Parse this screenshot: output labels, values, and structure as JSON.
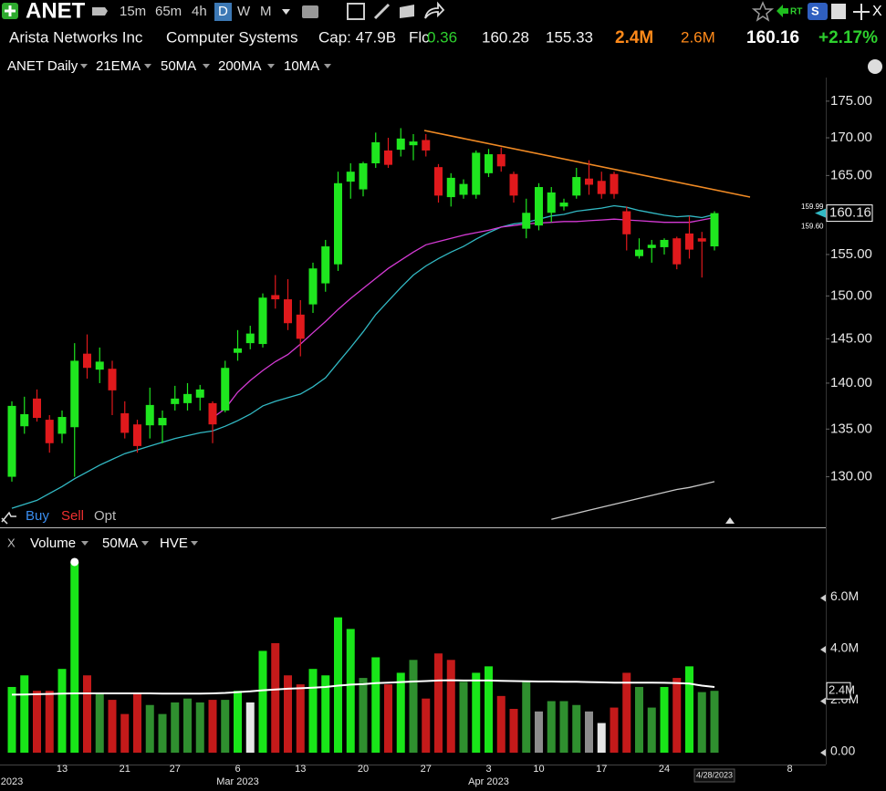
{
  "header": {
    "symbol": "ANET",
    "intervals": [
      "15m",
      "65m",
      "4h",
      "D",
      "W",
      "M"
    ],
    "company": "Arista Networks Inc",
    "industry": "Computer Systems",
    "cap": "Cap: 47.9B",
    "float_label": "Flc",
    "float": "0.36",
    "high": "160.28",
    "low": "155.33",
    "volume": "2.4M",
    "avg_volume": "2.6M",
    "last": "160.16",
    "change": "+2.17%",
    "rt": "RT",
    "s": "S",
    "close": "X"
  },
  "toolbar": {
    "buy": "Buy",
    "sell": "Sell",
    "opt": "Opt"
  },
  "chart_data": [
    {
      "type": "candlestick",
      "title": "ANET Daily",
      "title_color": "#35d035",
      "log_scale": true,
      "up_color": "#1fe61f",
      "down_color": "#e0191c",
      "categories": [
        null,
        null,
        null,
        null,
        "13",
        null,
        null,
        null,
        null,
        "21",
        null,
        null,
        null,
        "27",
        null,
        null,
        null,
        null,
        "6",
        null,
        null,
        null,
        null,
        "13",
        null,
        null,
        null,
        null,
        "20",
        null,
        null,
        null,
        null,
        "27",
        null,
        null,
        null,
        null,
        "3",
        null,
        null,
        null,
        "10",
        null,
        null,
        null,
        null,
        "17",
        null,
        null,
        null,
        null,
        "24",
        null,
        null,
        null,
        "4/28/2023",
        null,
        null,
        null,
        null,
        null,
        "8"
      ],
      "months": [
        "2023",
        null,
        null,
        null,
        null,
        null,
        null,
        null,
        null,
        null,
        null,
        null,
        null,
        null,
        null,
        null,
        null,
        null,
        "Mar 2023",
        null,
        null,
        null,
        null,
        null,
        null,
        null,
        null,
        null,
        null,
        null,
        null,
        null,
        null,
        null,
        null,
        null,
        null,
        null,
        "Apr 2023",
        null,
        null,
        null,
        null,
        null,
        null,
        null,
        null,
        null,
        null,
        null,
        null,
        null,
        null,
        null,
        null,
        null,
        null,
        null,
        null,
        null,
        null,
        null,
        null
      ],
      "open": [
        130,
        135.3,
        138.3,
        136,
        134.5,
        135.2,
        143.3,
        141.5,
        141.6,
        136.7,
        135.5,
        135.4,
        135.4,
        137.7,
        137.8,
        138.4,
        137.8,
        137,
        143.4,
        144.5,
        144.4,
        150.1,
        149.6,
        147.8,
        149,
        151.5,
        153.8,
        164.2,
        163.2,
        166.6,
        168.3,
        168.4,
        169,
        169.7,
        166.1,
        162.2,
        162.5,
        162.5,
        165.3,
        167.8,
        165.2,
        158.2,
        158.6,
        160.2,
        161,
        162.4,
        164.6,
        164.3,
        165.2,
        160.4,
        154.8,
        155.8,
        155.9,
        157,
        157.6,
        157,
        156,
        null,
        null,
        null,
        null,
        null,
        null
      ],
      "high": [
        138,
        138.5,
        139.3,
        136.5,
        137,
        144.5,
        145.5,
        144,
        142.5,
        138,
        136,
        139.5,
        137,
        139.7,
        140,
        139.8,
        138,
        142.5,
        146,
        146.5,
        150.3,
        152.5,
        152,
        149.5,
        154,
        156.8,
        165.5,
        166.6,
        166.8,
        170.7,
        170,
        171.3,
        170.5,
        170.5,
        166.5,
        165.3,
        164.5,
        168.3,
        168.5,
        168.7,
        165.5,
        162,
        164,
        163.5,
        162,
        166,
        167,
        165.5,
        165.5,
        161,
        157,
        156.8,
        157,
        157.2,
        159.8,
        157.8,
        160.4,
        null,
        null,
        null,
        null,
        null,
        null
      ],
      "low": [
        129.5,
        134.5,
        135.8,
        132.5,
        133.5,
        130,
        140.5,
        140,
        136.5,
        134,
        132.5,
        134,
        133.5,
        137,
        137,
        137,
        133.5,
        136.8,
        142.5,
        143.8,
        144,
        148.5,
        146,
        143,
        148,
        150.5,
        153,
        162,
        162.3,
        166,
        166,
        167.5,
        167,
        167.5,
        161.5,
        161,
        162,
        162,
        164.8,
        165.5,
        161.5,
        157,
        158,
        159,
        160.5,
        162,
        162.5,
        162,
        162,
        155.5,
        154.5,
        154,
        155,
        153.2,
        154.5,
        152.2,
        155.5,
        null,
        null,
        null,
        null,
        null,
        null
      ],
      "close": [
        137.5,
        136.6,
        136.2,
        133.5,
        136.3,
        142.5,
        141.7,
        142.4,
        139.2,
        134.6,
        133.2,
        137.6,
        136.2,
        138.3,
        138.8,
        139.3,
        135.5,
        141.7,
        143.9,
        145.6,
        149.8,
        149.6,
        146.8,
        145,
        153.3,
        156,
        164,
        165.5,
        166.6,
        169.4,
        166.4,
        169.9,
        169.5,
        168.3,
        162.4,
        164.7,
        163.9,
        168,
        167.8,
        166.2,
        162.4,
        160.2,
        163.5,
        162.8,
        161.5,
        164.8,
        163.8,
        162.6,
        162.6,
        157.5,
        155.6,
        156.2,
        156.8,
        153.8,
        155.6,
        156.6,
        160.16,
        null,
        null,
        null,
        null,
        null,
        null
      ],
      "series": [
        {
          "name": "21EMA",
          "legend_color": "#3cc6d0",
          "color": "#32b9c4",
          "end_label": "159.99",
          "values": [
            126.8,
            127.2,
            127.6,
            128.3,
            129.0,
            129.8,
            130.5,
            131.2,
            131.8,
            132.4,
            132.8,
            133.2,
            133.6,
            134.0,
            134.3,
            134.6,
            134.8,
            135.3,
            135.9,
            136.6,
            137.5,
            138.0,
            138.4,
            138.8,
            139.6,
            140.6,
            142.3,
            144.0,
            145.8,
            147.8,
            149.4,
            151.0,
            152.5,
            153.6,
            154.5,
            155.3,
            156.0,
            156.9,
            157.7,
            158.4,
            158.8,
            159.0,
            159.4,
            159.8,
            160.0,
            160.4,
            160.6,
            160.8,
            161.1,
            160.9,
            160.5,
            160.2,
            159.9,
            159.7,
            159.8,
            159.6,
            159.99,
            null,
            null,
            null,
            null,
            null,
            null
          ]
        },
        {
          "name": "50MA",
          "legend_color": "#e9b425",
          "color": "#d43ad4",
          "end_label": "159.60",
          "values": [
            null,
            null,
            null,
            null,
            null,
            null,
            null,
            null,
            null,
            null,
            null,
            null,
            null,
            null,
            null,
            null,
            136.2,
            137.2,
            139.0,
            140.3,
            141.4,
            142.4,
            143.2,
            144.4,
            145.7,
            147.0,
            148.4,
            149.7,
            150.9,
            152.1,
            153.3,
            154.3,
            155.3,
            156.2,
            156.6,
            157.0,
            157.4,
            157.7,
            158.0,
            158.4,
            158.6,
            158.8,
            158.9,
            159.0,
            159.1,
            159.1,
            159.2,
            159.3,
            159.4,
            159.3,
            159.2,
            159.1,
            159.0,
            159.0,
            159.0,
            159.3,
            159.6,
            null,
            null,
            null,
            null,
            null,
            null
          ]
        },
        {
          "name": "200MA",
          "legend_color": "#ffffff",
          "color": "#c8c8c8",
          "values": [
            null,
            null,
            null,
            null,
            null,
            null,
            null,
            null,
            null,
            null,
            null,
            null,
            null,
            null,
            null,
            null,
            null,
            null,
            null,
            null,
            null,
            null,
            null,
            null,
            null,
            null,
            null,
            null,
            null,
            null,
            null,
            null,
            null,
            null,
            null,
            null,
            null,
            null,
            null,
            null,
            null,
            null,
            null,
            125.7,
            126.0,
            126.3,
            126.6,
            126.9,
            127.2,
            127.5,
            127.8,
            128.1,
            128.4,
            128.7,
            128.9,
            129.2,
            129.5,
            null,
            null,
            null,
            null,
            null,
            null
          ]
        }
      ],
      "extra_legend": [
        {
          "name": "10MA",
          "color": "#f07a1e"
        }
      ],
      "ylim": [
        124.9,
        178.3
      ],
      "yticks": [
        {
          "value": 130,
          "label": "130.00"
        },
        {
          "value": 135,
          "label": "135.00"
        },
        {
          "value": 140,
          "label": "140.00"
        },
        {
          "value": 145,
          "label": "145.00"
        },
        {
          "value": 150,
          "label": "150.00"
        },
        {
          "value": 155,
          "label": "155.00"
        },
        {
          "value": 165,
          "label": "165.00"
        },
        {
          "value": 170,
          "label": "170.00"
        },
        {
          "value": 175,
          "label": "175.00"
        }
      ]
    },
    {
      "type": "bar",
      "title": "Volume",
      "title_color": "#35d035",
      "series": [
        {
          "name": "Volume",
          "end_label": "2.4M",
          "values": [
            2550000,
            3000000,
            2400000,
            2400000,
            3250000,
            7400000,
            3000000,
            2300000,
            2050000,
            1500000,
            2300000,
            1850000,
            1500000,
            1950000,
            2100000,
            1950000,
            2050000,
            2050000,
            2400000,
            1950000,
            3950000,
            4250000,
            3000000,
            2650000,
            3250000,
            3000000,
            5250000,
            4800000,
            2900000,
            3700000,
            2650000,
            3100000,
            3600000,
            2100000,
            3850000,
            3600000,
            2750000,
            3100000,
            3350000,
            2200000,
            1700000,
            2800000,
            1600000,
            2000000,
            2000000,
            1850000,
            1600000,
            1150000,
            1750000,
            3100000,
            2550000,
            1750000,
            2550000,
            2900000,
            3350000,
            2350000,
            2400000,
            null,
            null,
            null,
            null,
            null,
            null
          ],
          "colors": [
            "#19e619",
            "#19e619",
            "#c41a1a",
            "#c41a1a",
            "#19e619",
            "#19e619",
            "#c41a1a",
            "#2f8f2f",
            "#c41a1a",
            "#c41a1a",
            "#c41a1a",
            "#2f8f2f",
            "#2f8f2f",
            "#2f8f2f",
            "#2f8f2f",
            "#2f8f2f",
            "#c41a1a",
            "#2f8f2f",
            "#19e619",
            "#e6e6e6",
            "#19e619",
            "#c41a1a",
            "#c41a1a",
            "#c41a1a",
            "#19e619",
            "#19e619",
            "#19e619",
            "#19e619",
            "#2f8f2f",
            "#19e619",
            "#c41a1a",
            "#19e619",
            "#2f8f2f",
            "#c41a1a",
            "#c41a1a",
            "#c41a1a",
            "#2f8f2f",
            "#19e619",
            "#19e619",
            "#c41a1a",
            "#c41a1a",
            "#2f8f2f",
            "#8c8c8c",
            "#2f8f2f",
            "#2f8f2f",
            "#2f8f2f",
            "#8c8c8c",
            "#e6e6e6",
            "#c41a1a",
            "#c41a1a",
            "#2f8f2f",
            "#2f8f2f",
            "#19e619",
            "#c41a1a",
            "#19e619",
            "#2f8f2f",
            "#2f8f2f",
            null,
            null,
            null,
            null,
            null,
            null
          ]
        }
      ],
      "lines": [
        {
          "name": "50MA",
          "color": "#ffffff",
          "values": [
            2250000,
            2260000,
            2270000,
            2280000,
            2290000,
            2300000,
            2300000,
            2300000,
            2300000,
            2300000,
            2300000,
            2300000,
            2290000,
            2290000,
            2290000,
            2290000,
            2300000,
            2320000,
            2350000,
            2380000,
            2420000,
            2450000,
            2480000,
            2500000,
            2520000,
            2550000,
            2600000,
            2640000,
            2660000,
            2700000,
            2720000,
            2740000,
            2760000,
            2780000,
            2800000,
            2810000,
            2800000,
            2800000,
            2800000,
            2790000,
            2780000,
            2770000,
            2760000,
            2760000,
            2750000,
            2750000,
            2740000,
            2730000,
            2720000,
            2720000,
            2720000,
            2720000,
            2710000,
            2700000,
            2680000,
            2600000,
            2550000,
            null,
            null,
            null,
            null,
            null,
            null
          ]
        }
      ],
      "extra_legend": [
        {
          "name": "HVE",
          "color": "#ffffff"
        }
      ],
      "close_label": "X",
      "ylim": [
        0,
        8000000
      ],
      "yticks": [
        {
          "value": 0,
          "label": "0.00"
        },
        {
          "value": 2000000,
          "label": "2.0M"
        },
        {
          "value": 4000000,
          "label": "4.0M"
        },
        {
          "value": 6000000,
          "label": "6.0M"
        }
      ]
    }
  ]
}
